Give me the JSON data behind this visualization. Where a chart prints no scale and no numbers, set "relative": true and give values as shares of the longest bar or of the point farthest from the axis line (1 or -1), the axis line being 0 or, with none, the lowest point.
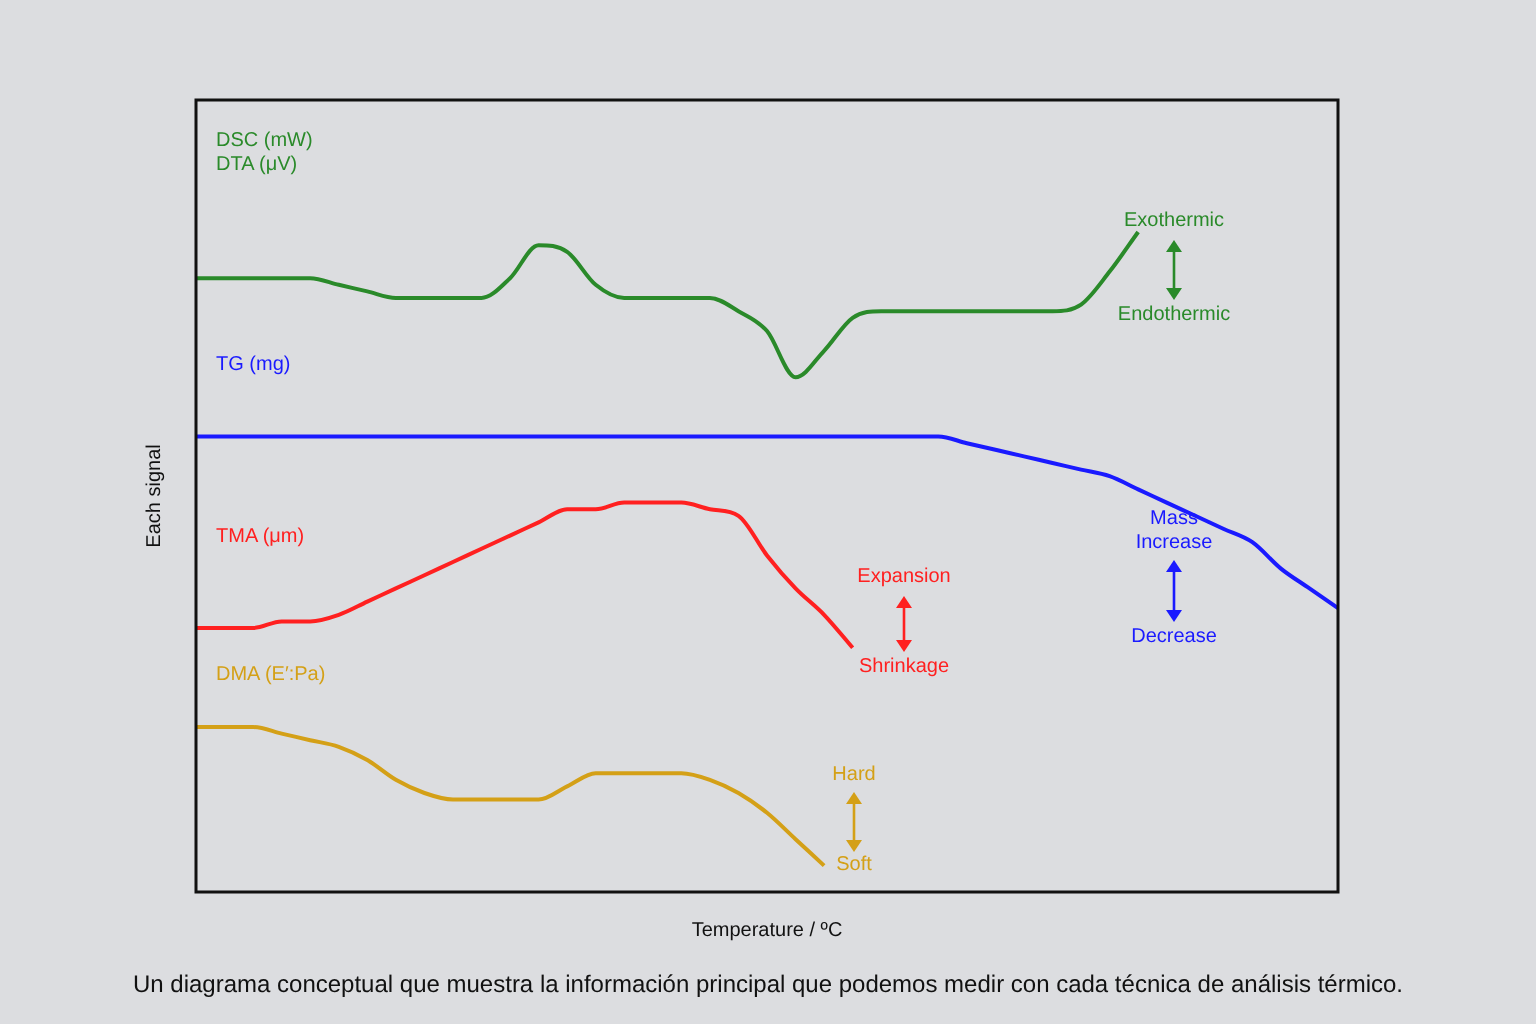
{
  "chart_data": {
    "type": "line",
    "relative": true,
    "marker": "none",
    "xlabel": "Temperature / ºC",
    "ylabel": "Each signal",
    "categories": [
      null,
      null,
      null,
      null,
      null,
      null,
      null,
      null,
      null,
      null,
      null,
      null,
      null,
      null,
      null,
      null,
      null,
      null,
      null,
      null,
      null,
      null,
      null,
      null,
      null,
      null,
      null,
      null,
      null,
      null,
      null,
      null,
      null,
      null,
      null,
      null,
      null,
      null,
      null,
      null,
      null
    ],
    "series": [
      {
        "name": "DSC (mW)",
        "color": "#2a8a2a",
        "values": [
          0.93,
          0.93,
          0.93,
          0.93,
          0.93,
          0.92,
          0.91,
          0.9,
          0.9,
          0.9,
          0.9,
          0.93,
          0.98,
          0.97,
          0.92,
          0.9,
          0.9,
          0.9,
          0.9,
          0.88,
          0.85,
          0.78,
          0.82,
          0.87,
          0.88,
          0.88,
          0.88,
          0.88,
          0.88,
          0.88,
          0.88,
          0.89,
          0.94,
          1,
          null,
          null,
          null,
          null,
          null,
          null,
          null
        ]
      },
      {
        "name": "TG (mg)",
        "color": "#1a1aff",
        "values": [
          0.69,
          0.69,
          0.69,
          0.69,
          0.69,
          0.69,
          0.69,
          0.69,
          0.69,
          0.69,
          0.69,
          0.69,
          0.69,
          0.69,
          0.69,
          0.69,
          0.69,
          0.69,
          0.69,
          0.69,
          0.69,
          0.69,
          0.69,
          0.69,
          0.69,
          0.69,
          0.69,
          0.68,
          0.67,
          0.66,
          0.65,
          0.64,
          0.63,
          0.61,
          0.59,
          0.57,
          0.55,
          0.53,
          0.49,
          0.46,
          0.43
        ]
      },
      {
        "name": "TMA (μm)",
        "color": "#ff2020",
        "values": [
          0.4,
          0.4,
          0.4,
          0.41,
          0.41,
          0.42,
          0.44,
          0.46,
          0.48,
          0.5,
          0.52,
          0.54,
          0.56,
          0.58,
          0.58,
          0.59,
          0.59,
          0.59,
          0.58,
          0.57,
          0.51,
          0.46,
          0.42,
          0.37,
          null,
          null,
          null,
          null,
          null,
          null,
          null,
          null,
          null,
          null,
          null,
          null,
          null,
          null,
          null,
          null,
          null
        ]
      },
      {
        "name": "DMA (E′:Pa)",
        "color": "#d4a017",
        "values": [
          0.25,
          0.25,
          0.25,
          0.24,
          0.23,
          0.22,
          0.2,
          0.17,
          0.15,
          0.14,
          0.14,
          0.14,
          0.14,
          0.16,
          0.18,
          0.18,
          0.18,
          0.18,
          0.17,
          0.15,
          0.12,
          0.08,
          0.04,
          null,
          null,
          null,
          null,
          null,
          null,
          null,
          null,
          null,
          null,
          null,
          null,
          null,
          null,
          null,
          null,
          null,
          null
        ]
      }
    ],
    "annotations": [
      "DTA (μV)",
      "Exothermic",
      "Endothermic",
      "Expansion",
      "Shrinkage",
      "Mass Increase",
      "Decrease",
      "Hard",
      "Soft",
      "Un diagrama conceptual que muestra la información principal que podemos medir con cada técnica de análisis térmico."
    ]
  }
}
